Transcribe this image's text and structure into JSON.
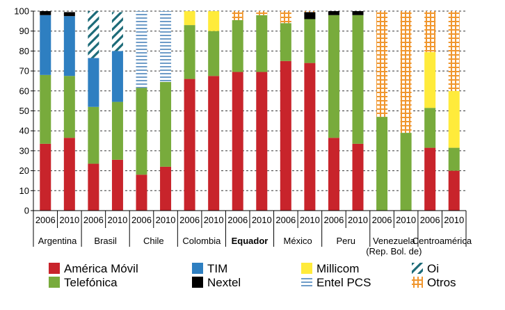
{
  "chart_data": {
    "type": "bar",
    "stacked": true,
    "ylim": [
      0,
      100
    ],
    "yticks": [
      0,
      10,
      20,
      30,
      40,
      50,
      60,
      70,
      80,
      90,
      100
    ],
    "grid": true,
    "legend_position": "bottom",
    "groups": [
      {
        "name": "Argentina",
        "years": [
          "2006",
          "2010"
        ]
      },
      {
        "name": "Brasil",
        "years": [
          "2006",
          "2010"
        ]
      },
      {
        "name": "Chile",
        "years": [
          "2006",
          "2010"
        ]
      },
      {
        "name": "Colombia",
        "years": [
          "2006",
          "2010"
        ]
      },
      {
        "name": "Equador",
        "years": [
          "2006",
          "2010"
        ],
        "bold": true
      },
      {
        "name": "México",
        "years": [
          "2006",
          "2010"
        ]
      },
      {
        "name": "Peru",
        "years": [
          "2006",
          "2010"
        ]
      },
      {
        "name": "Venezuela",
        "name_line2": "(Rep. Bol. de)",
        "years": [
          "2006",
          "2010"
        ]
      },
      {
        "name": "Centroamérica",
        "years": [
          "2006",
          "2010"
        ]
      }
    ],
    "series": [
      {
        "name": "América Móvil",
        "color": "#c8242b",
        "pattern": "solid",
        "values": [
          33.5,
          36.5,
          23.5,
          25.5,
          18,
          22,
          66,
          67.5,
          69.5,
          69.5,
          75,
          74,
          36.5,
          33.5,
          0,
          0,
          31.5,
          20
        ]
      },
      {
        "name": "Telefónica",
        "color": "#78ab3c",
        "pattern": "solid",
        "values": [
          34.5,
          31,
          28.5,
          29,
          43.5,
          42.5,
          27,
          22.5,
          26,
          28.5,
          19,
          22,
          61.5,
          64.5,
          47,
          39,
          20,
          11.5
        ]
      },
      {
        "name": "TIM",
        "color": "#2e7fc1",
        "pattern": "solid",
        "values": [
          30,
          30,
          24.5,
          25.5,
          0,
          0,
          0,
          0,
          0,
          0,
          0,
          0,
          0,
          0,
          0,
          0,
          0,
          0
        ]
      },
      {
        "name": "Nextel",
        "color": "#000000",
        "pattern": "solid",
        "values": [
          2,
          2,
          0,
          0,
          0,
          0,
          0,
          0,
          0,
          0,
          0,
          3.5,
          2,
          2,
          0,
          0,
          0,
          0
        ]
      },
      {
        "name": "Millicom",
        "color": "#ffeb3b",
        "pattern": "solid",
        "values": [
          0,
          0,
          0,
          0,
          0,
          0,
          7,
          10,
          0,
          0,
          0,
          0,
          0,
          0,
          0,
          0,
          28,
          28.5
        ]
      },
      {
        "name": "Entel PCS",
        "color": "#4a7fb5",
        "pattern": "hlines",
        "values": [
          0,
          0,
          0,
          0,
          38.5,
          35.5,
          0,
          0,
          0,
          0,
          0,
          0,
          0,
          0,
          0,
          0,
          0,
          0
        ]
      },
      {
        "name": "Oi",
        "color": "#1c6b78",
        "pattern": "diag",
        "values": [
          0,
          0,
          23.5,
          19.5,
          0,
          0,
          0,
          0,
          0,
          0,
          0,
          0,
          0,
          0,
          0,
          0,
          0,
          0
        ]
      },
      {
        "name": "Otros",
        "color": "#f0962e",
        "pattern": "grid",
        "values": [
          0,
          0,
          0,
          0,
          0,
          0,
          0,
          0,
          4.5,
          2,
          6,
          0.5,
          0,
          0,
          53,
          61,
          20.5,
          40
        ]
      }
    ],
    "legend": [
      {
        "series": "América Móvil",
        "col": 0,
        "row": 0
      },
      {
        "series": "Telefónica",
        "col": 0,
        "row": 1
      },
      {
        "series": "TIM",
        "col": 1,
        "row": 0
      },
      {
        "series": "Nextel",
        "col": 1,
        "row": 1
      },
      {
        "series": "Millicom",
        "col": 2,
        "row": 0
      },
      {
        "series": "Entel PCS",
        "col": 2,
        "row": 1
      },
      {
        "series": "Oi",
        "col": 3,
        "row": 0
      },
      {
        "series": "Otros",
        "col": 3,
        "row": 1
      }
    ]
  }
}
